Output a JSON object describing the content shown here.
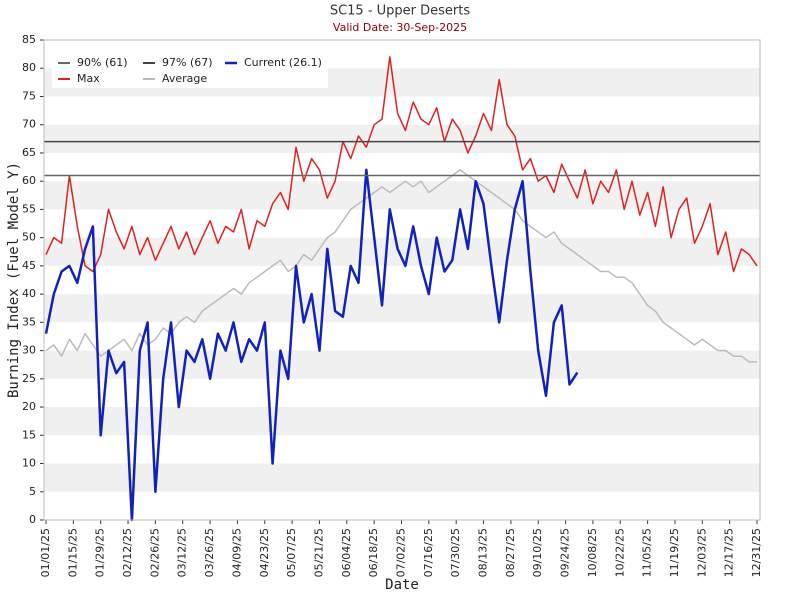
{
  "chart_data": {
    "type": "line",
    "title": "SC15 - Upper Deserts",
    "subtitle": "Valid Date: 30-Sep-2025",
    "xlabel": "Date",
    "ylabel": "Burning Index (Fuel Model Y)",
    "grid": "banded",
    "ylim": [
      0,
      85
    ],
    "yticks": [
      0,
      5,
      10,
      15,
      20,
      25,
      30,
      35,
      40,
      45,
      50,
      55,
      60,
      65,
      70,
      75,
      80,
      85
    ],
    "xlim": [
      "01/01/25",
      "12/31/25"
    ],
    "xticks": [
      "01/01/25",
      "01/15/25",
      "01/29/25",
      "02/12/25",
      "02/26/25",
      "03/12/25",
      "03/26/25",
      "04/09/25",
      "04/23/25",
      "05/07/25",
      "05/21/25",
      "06/04/25",
      "06/18/25",
      "07/02/25",
      "07/16/25",
      "07/30/25",
      "08/13/25",
      "08/27/25",
      "09/10/25",
      "09/24/25",
      "10/08/25",
      "10/22/25",
      "11/05/25",
      "11/19/25",
      "12/03/25",
      "12/17/25",
      "12/31/25"
    ],
    "x": [
      "01/01/25",
      "01/05/25",
      "01/09/25",
      "01/13/25",
      "01/17/25",
      "01/21/25",
      "01/25/25",
      "01/29/25",
      "02/02/25",
      "02/06/25",
      "02/10/25",
      "02/14/25",
      "02/18/25",
      "02/22/25",
      "02/26/25",
      "03/02/25",
      "03/06/25",
      "03/10/25",
      "03/14/25",
      "03/18/25",
      "03/22/25",
      "03/26/25",
      "03/30/25",
      "04/03/25",
      "04/07/25",
      "04/11/25",
      "04/15/25",
      "04/19/25",
      "04/23/25",
      "04/27/25",
      "05/01/25",
      "05/05/25",
      "05/09/25",
      "05/13/25",
      "05/17/25",
      "05/21/25",
      "05/25/25",
      "05/29/25",
      "06/02/25",
      "06/06/25",
      "06/10/25",
      "06/14/25",
      "06/18/25",
      "06/22/25",
      "06/26/25",
      "06/30/25",
      "07/04/25",
      "07/08/25",
      "07/12/25",
      "07/16/25",
      "07/20/25",
      "07/24/25",
      "07/28/25",
      "08/01/25",
      "08/05/25",
      "08/09/25",
      "08/13/25",
      "08/17/25",
      "08/21/25",
      "08/25/25",
      "08/29/25",
      "09/02/25",
      "09/06/25",
      "09/10/25",
      "09/14/25",
      "09/18/25",
      "09/22/25",
      "09/26/25",
      "09/30/25",
      "10/04/25",
      "10/08/25",
      "10/12/25",
      "10/16/25",
      "10/20/25",
      "10/24/25",
      "10/28/25",
      "11/01/25",
      "11/05/25",
      "11/09/25",
      "11/13/25",
      "11/17/25",
      "11/21/25",
      "11/25/25",
      "11/29/25",
      "12/03/25",
      "12/07/25",
      "12/11/25",
      "12/15/25",
      "12/19/25",
      "12/23/25",
      "12/27/25",
      "12/31/25"
    ],
    "series": [
      {
        "name": "90% (61)",
        "color": "#666666",
        "hline": 61
      },
      {
        "name": "Max",
        "color": "#dd2222",
        "values": [
          47,
          50,
          49,
          61,
          52,
          45,
          44,
          47,
          55,
          51,
          48,
          52,
          47,
          50,
          46,
          49,
          52,
          48,
          51,
          47,
          50,
          53,
          49,
          52,
          51,
          55,
          48,
          53,
          52,
          56,
          58,
          55,
          66,
          60,
          64,
          62,
          57,
          60,
          67,
          64,
          68,
          66,
          70,
          71,
          82,
          72,
          69,
          74,
          71,
          70,
          73,
          67,
          71,
          69,
          65,
          68,
          72,
          69,
          78,
          70,
          68,
          62,
          64,
          60,
          61,
          58,
          63,
          60,
          57,
          62,
          56,
          60,
          58,
          62,
          55,
          60,
          54,
          58,
          52,
          59,
          50,
          55,
          57,
          49,
          52,
          56,
          47,
          51,
          44,
          48,
          47,
          45
        ]
      },
      {
        "name": "97% (67)",
        "color": "#444444",
        "hline": 67
      },
      {
        "name": "Average",
        "color": "#bbbbbb",
        "values": [
          30,
          31,
          29,
          32,
          30,
          33,
          31,
          29,
          30,
          31,
          32,
          30,
          33,
          31,
          32,
          34,
          33,
          35,
          36,
          35,
          37,
          38,
          39,
          40,
          41,
          40,
          42,
          43,
          44,
          45,
          46,
          44,
          45,
          47,
          46,
          48,
          50,
          51,
          53,
          55,
          56,
          57,
          58,
          59,
          58,
          59,
          60,
          59,
          60,
          58,
          59,
          60,
          61,
          62,
          61,
          60,
          59,
          58,
          57,
          56,
          55,
          53,
          52,
          51,
          50,
          51,
          49,
          48,
          47,
          46,
          45,
          44,
          44,
          43,
          43,
          42,
          40,
          38,
          37,
          35,
          34,
          33,
          32,
          31,
          32,
          31,
          30,
          30,
          29,
          29,
          28,
          28
        ]
      },
      {
        "name": "Current (26.1)",
        "color": "#1122bb",
        "values": [
          33,
          40,
          44,
          45,
          42,
          48,
          52,
          15,
          30,
          26,
          28,
          0,
          30,
          35,
          5,
          25,
          35,
          20,
          30,
          28,
          32,
          25,
          33,
          30,
          35,
          28,
          32,
          30,
          35,
          10,
          30,
          25,
          45,
          35,
          40,
          30,
          48,
          37,
          36,
          45,
          42,
          62,
          50,
          38,
          55,
          48,
          45,
          52,
          45,
          40,
          50,
          44,
          46,
          55,
          48,
          60,
          56,
          45,
          35,
          46,
          55,
          60,
          44,
          30,
          22,
          35,
          38,
          24,
          26.1,
          null,
          null,
          null,
          null,
          null,
          null,
          null,
          null,
          null,
          null,
          null,
          null,
          null,
          null,
          null,
          null,
          null,
          null,
          null,
          null,
          null,
          null,
          null
        ]
      }
    ]
  }
}
